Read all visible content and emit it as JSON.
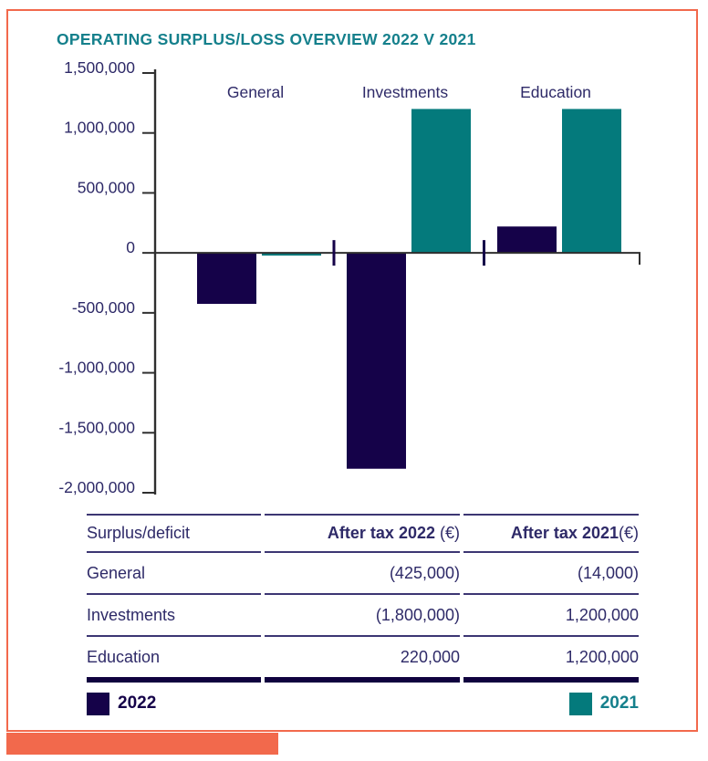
{
  "title": "OPERATING SURPLUS/LOSS OVERVIEW 2022 V 2021",
  "colors": {
    "navy": "#150249",
    "teal": "#047a7c",
    "title_teal": "#15808c",
    "text_navy": "#2e2a68",
    "axis_line": "#2f2f2f",
    "table_rule": "#3c3673",
    "table_rule_thick": "#10023f",
    "coral": "#f2694c"
  },
  "chart_data": {
    "type": "bar",
    "title": "OPERATING SURPLUS/LOSS OVERVIEW 2022 V 2021",
    "categories": [
      "General",
      "Investments",
      "Education"
    ],
    "series": [
      {
        "name": "2022",
        "color": "#150249",
        "values": [
          -425000,
          -1800000,
          220000
        ]
      },
      {
        "name": "2021",
        "color": "#047a7c",
        "values": [
          -14000,
          1200000,
          1200000
        ]
      }
    ],
    "y_ticks": [
      1500000,
      1000000,
      500000,
      0,
      -500000,
      -1000000,
      -1500000,
      -2000000
    ],
    "ylim": [
      -2000000,
      1500000
    ],
    "grid": false,
    "legend_position": "bottom"
  },
  "table": {
    "columns": [
      {
        "label": "Surplus/deficit",
        "suffix": ""
      },
      {
        "label": "After tax 2022",
        "suffix": " (€)"
      },
      {
        "label": "After tax 2021",
        "suffix": "(€)"
      }
    ],
    "rows": [
      {
        "name": "General",
        "after_tax_2022": "(425,000)",
        "after_tax_2021": "(14,000)"
      },
      {
        "name": "Investments",
        "after_tax_2022": "(1,800,000)",
        "after_tax_2021": "1,200,000"
      },
      {
        "name": "Education",
        "after_tax_2022": "220,000",
        "after_tax_2021": "1,200,000"
      }
    ]
  },
  "legend": {
    "items": [
      {
        "label": "2022",
        "color": "#150249"
      },
      {
        "label": "2021",
        "color": "#047a7c"
      }
    ]
  }
}
